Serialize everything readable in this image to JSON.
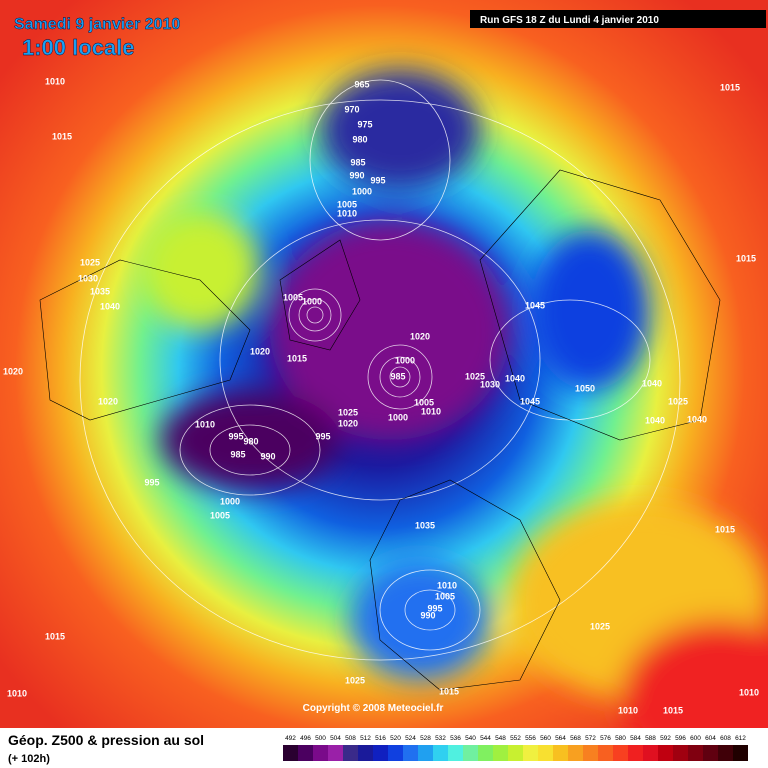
{
  "header": {
    "title": "Samedi 9 janvier 2010",
    "subtitle": "1:00 locale",
    "run": "Run GFS 18 Z du Lundi 4 janvier 2010"
  },
  "isobars": [
    "965",
    "970",
    "975",
    "980",
    "985",
    "990",
    "995",
    "1000",
    "1005",
    "1010",
    "1010",
    "1015",
    "1025",
    "1030",
    "1035",
    "1040",
    "1005",
    "1000",
    "1020",
    "1015",
    "1020",
    "1000",
    "985",
    "1045",
    "1015",
    "1020",
    "1020",
    "1010",
    "995",
    "980",
    "985",
    "990",
    "995",
    "1000",
    "1005",
    "1025",
    "1020",
    "995",
    "1005",
    "1010",
    "1000",
    "1025",
    "1030",
    "1040",
    "1045",
    "1050",
    "1040",
    "1025",
    "1040",
    "1040",
    "1035",
    "1010",
    "1005",
    "995",
    "990",
    "1015",
    "1025",
    "1015",
    "1025",
    "1015",
    "1010",
    "1010",
    "1015",
    "1010",
    "1015"
  ],
  "copyright": "Copyright © 2008 Meteociel.fr",
  "legend": {
    "title": "Géop. Z500 & pression au sol",
    "subtitle": "(+ 102h)",
    "levels": [
      492,
      496,
      500,
      504,
      508,
      512,
      516,
      520,
      524,
      528,
      532,
      536,
      540,
      544,
      548,
      552,
      556,
      560,
      564,
      568,
      572,
      576,
      580,
      584,
      588,
      592,
      596,
      600,
      604,
      608,
      612
    ],
    "colors": [
      "#2a0030",
      "#4b0060",
      "#7a0a8a",
      "#9a20a8",
      "#3a2a8a",
      "#1a1a9a",
      "#1020c0",
      "#1040e0",
      "#2070f0",
      "#20a0f0",
      "#30d0f0",
      "#50f0e0",
      "#70f0a0",
      "#80f060",
      "#a0f040",
      "#c8f030",
      "#f0f040",
      "#f8e030",
      "#f8c020",
      "#f8a020",
      "#f88020",
      "#f86020",
      "#f84020",
      "#f02020",
      "#e01020",
      "#c00010",
      "#a00010",
      "#800010",
      "#600010",
      "#400008",
      "#200000"
    ]
  }
}
